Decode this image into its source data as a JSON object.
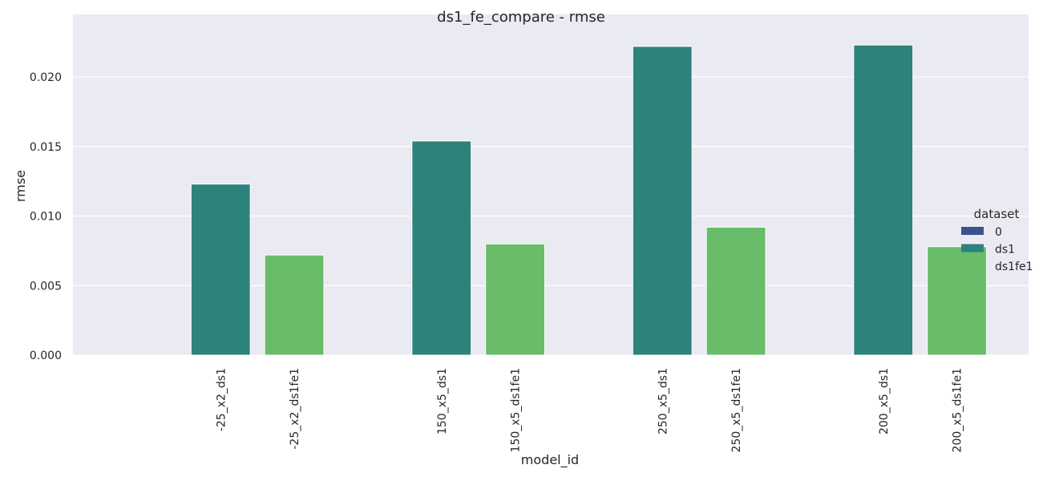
{
  "chart_data": {
    "type": "bar",
    "title": "ds1_fe_compare - rmse",
    "xlabel": "model_id",
    "ylabel": "rmse",
    "ylim": [
      0,
      0.0245
    ],
    "yticks": [
      "0.000",
      "0.005",
      "0.010",
      "0.015",
      "0.020"
    ],
    "ytick_values": [
      0,
      0.005,
      0.01,
      0.015,
      0.02
    ],
    "grid": true,
    "categories": [
      "-25_x2_ds1",
      "-25_x2_ds1fe1",
      "150_x5_ds1",
      "150_x5_ds1fe1",
      "250_x5_ds1",
      "250_x5_ds1fe1",
      "200_x5_ds1",
      "200_x5_ds1fe1"
    ],
    "series": [
      {
        "name": "0",
        "color": "#3b528b",
        "values": [
          null,
          null,
          null,
          null,
          null,
          null,
          null,
          null
        ]
      },
      {
        "name": "ds1",
        "color": "#2c837c",
        "values": [
          0.0123,
          null,
          0.0154,
          null,
          0.0222,
          null,
          0.0223,
          null
        ]
      },
      {
        "name": "ds1fe1",
        "color": "#69bd6a",
        "values": [
          null,
          0.0072,
          null,
          0.008,
          null,
          0.0092,
          null,
          0.0078
        ]
      }
    ],
    "legend": {
      "title": "dataset",
      "placement": "right"
    }
  }
}
